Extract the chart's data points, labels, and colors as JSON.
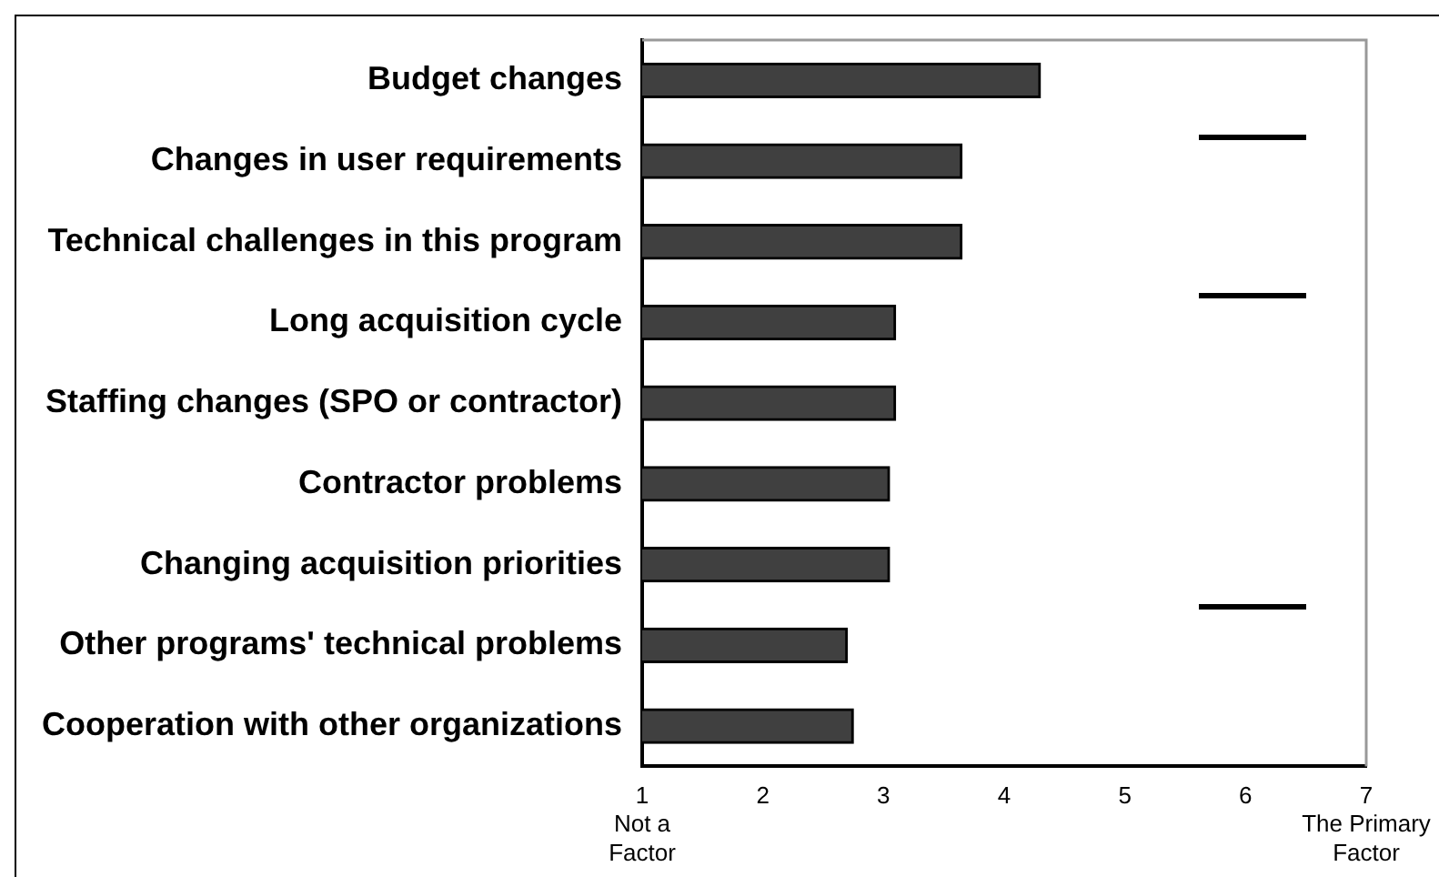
{
  "chart_data": {
    "type": "bar",
    "orientation": "horizontal",
    "categories": [
      "Budget changes",
      "Changes in user requirements",
      "Technical challenges in this program",
      "Long acquisition cycle",
      "Staffing changes (SPO or contractor)",
      "Contractor problems",
      "Changing acquisition priorities",
      "Other programs' technical problems",
      "Cooperation with other organizations"
    ],
    "values": [
      4.3,
      3.65,
      3.65,
      3.1,
      3.1,
      3.05,
      3.05,
      2.7,
      2.75
    ],
    "color": "#404040",
    "xlim": [
      1,
      7
    ],
    "xticks": [
      {
        "value": 1,
        "label": "1\nNot a\nFactor"
      },
      2,
      3,
      4,
      5,
      6,
      {
        "value": 7,
        "label": "7\nThe Primary\nFactor"
      }
    ],
    "grid": false,
    "legend": false
  }
}
